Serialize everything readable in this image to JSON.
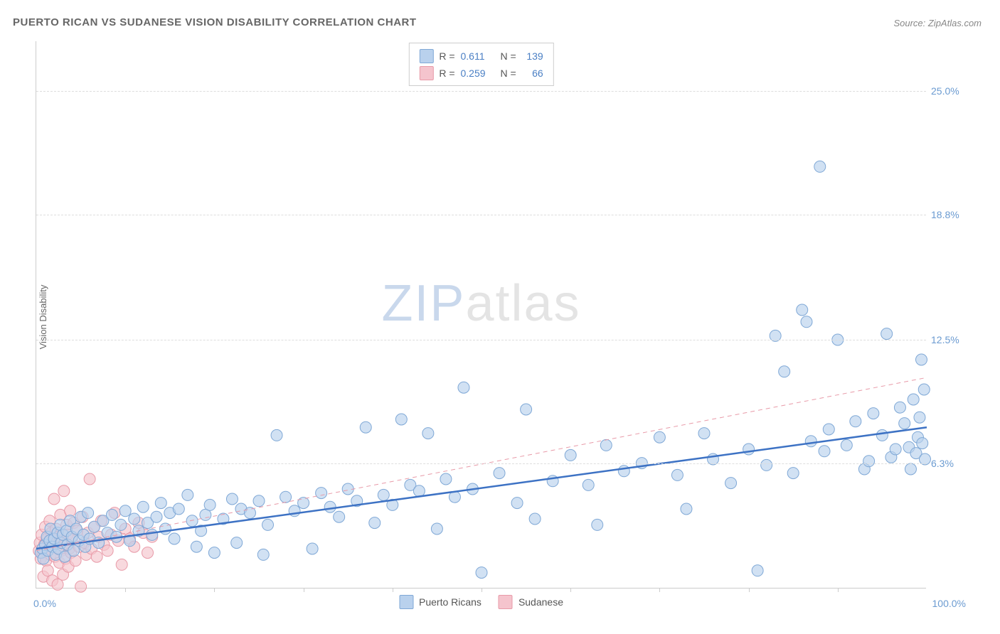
{
  "title": "PUERTO RICAN VS SUDANESE VISION DISABILITY CORRELATION CHART",
  "source": "Source: ZipAtlas.com",
  "ylabel": "Vision Disability",
  "watermark_a": "ZIP",
  "watermark_b": "atlas",
  "chart": {
    "type": "scatter",
    "xlim": [
      0,
      100
    ],
    "ylim": [
      0,
      27.5
    ],
    "x_min_label": "0.0%",
    "x_max_label": "100.0%",
    "y_ticks": [
      {
        "v": 6.3,
        "label": "6.3%"
      },
      {
        "v": 12.5,
        "label": "12.5%"
      },
      {
        "v": 18.8,
        "label": "18.8%"
      },
      {
        "v": 25.0,
        "label": "25.0%"
      }
    ],
    "x_tick_step": 10,
    "background_color": "#ffffff",
    "grid_color": "#dddddd",
    "axis_color": "#cccccc",
    "marker_radius": 8,
    "marker_stroke_width": 1,
    "series": [
      {
        "name": "Puerto Ricans",
        "fill": "#b9d1ed",
        "stroke": "#7fa8d6",
        "fill_opacity": 0.65,
        "trend": {
          "y0": 2.0,
          "y1": 8.1,
          "color": "#3d72c4",
          "width": 2.5,
          "dash": "none"
        },
        "stats": {
          "R": "0.611",
          "N": "139"
        },
        "points": [
          [
            0.5,
            1.8
          ],
          [
            0.7,
            2.0
          ],
          [
            0.8,
            1.5
          ],
          [
            1.0,
            2.2
          ],
          [
            1.2,
            2.6
          ],
          [
            1.3,
            1.9
          ],
          [
            1.5,
            2.4
          ],
          [
            1.6,
            3.0
          ],
          [
            1.8,
            2.1
          ],
          [
            2.0,
            2.5
          ],
          [
            2.2,
            1.7
          ],
          [
            2.4,
            2.8
          ],
          [
            2.5,
            2.0
          ],
          [
            2.7,
            3.2
          ],
          [
            2.8,
            2.3
          ],
          [
            3.0,
            2.7
          ],
          [
            3.2,
            1.6
          ],
          [
            3.4,
            2.9
          ],
          [
            3.5,
            2.2
          ],
          [
            3.8,
            3.4
          ],
          [
            4.0,
            2.6
          ],
          [
            4.2,
            1.9
          ],
          [
            4.5,
            3.0
          ],
          [
            4.8,
            2.4
          ],
          [
            5.0,
            3.6
          ],
          [
            5.3,
            2.7
          ],
          [
            5.5,
            2.1
          ],
          [
            5.8,
            3.8
          ],
          [
            6.0,
            2.5
          ],
          [
            6.5,
            3.1
          ],
          [
            7.0,
            2.3
          ],
          [
            7.5,
            3.4
          ],
          [
            8.0,
            2.8
          ],
          [
            8.5,
            3.7
          ],
          [
            9.0,
            2.6
          ],
          [
            9.5,
            3.2
          ],
          [
            10.0,
            3.9
          ],
          [
            10.5,
            2.4
          ],
          [
            11.0,
            3.5
          ],
          [
            11.5,
            2.9
          ],
          [
            12.0,
            4.1
          ],
          [
            12.5,
            3.3
          ],
          [
            13.0,
            2.7
          ],
          [
            13.5,
            3.6
          ],
          [
            14.0,
            4.3
          ],
          [
            14.5,
            3.0
          ],
          [
            15.0,
            3.8
          ],
          [
            15.5,
            2.5
          ],
          [
            16.0,
            4.0
          ],
          [
            17.0,
            4.7
          ],
          [
            17.5,
            3.4
          ],
          [
            18.0,
            2.1
          ],
          [
            18.5,
            2.9
          ],
          [
            19.0,
            3.7
          ],
          [
            19.5,
            4.2
          ],
          [
            20.0,
            1.8
          ],
          [
            21.0,
            3.5
          ],
          [
            22.0,
            4.5
          ],
          [
            22.5,
            2.3
          ],
          [
            23.0,
            4.0
          ],
          [
            24.0,
            3.8
          ],
          [
            25.0,
            4.4
          ],
          [
            25.5,
            1.7
          ],
          [
            26.0,
            3.2
          ],
          [
            27.0,
            7.7
          ],
          [
            28.0,
            4.6
          ],
          [
            29.0,
            3.9
          ],
          [
            30.0,
            4.3
          ],
          [
            31.0,
            2.0
          ],
          [
            32.0,
            4.8
          ],
          [
            33.0,
            4.1
          ],
          [
            34.0,
            3.6
          ],
          [
            35.0,
            5.0
          ],
          [
            36.0,
            4.4
          ],
          [
            37.0,
            8.1
          ],
          [
            38.0,
            3.3
          ],
          [
            39.0,
            4.7
          ],
          [
            40.0,
            4.2
          ],
          [
            41.0,
            8.5
          ],
          [
            42.0,
            5.2
          ],
          [
            43.0,
            4.9
          ],
          [
            44.0,
            7.8
          ],
          [
            45.0,
            3.0
          ],
          [
            46.0,
            5.5
          ],
          [
            47.0,
            4.6
          ],
          [
            48.0,
            10.1
          ],
          [
            49.0,
            5.0
          ],
          [
            50.0,
            0.8
          ],
          [
            52.0,
            5.8
          ],
          [
            54.0,
            4.3
          ],
          [
            55.0,
            9.0
          ],
          [
            56.0,
            3.5
          ],
          [
            58.0,
            5.4
          ],
          [
            60.0,
            6.7
          ],
          [
            62.0,
            5.2
          ],
          [
            63.0,
            3.2
          ],
          [
            64.0,
            7.2
          ],
          [
            66.0,
            5.9
          ],
          [
            68.0,
            6.3
          ],
          [
            70.0,
            7.6
          ],
          [
            72.0,
            5.7
          ],
          [
            73.0,
            4.0
          ],
          [
            75.0,
            7.8
          ],
          [
            76.0,
            6.5
          ],
          [
            78.0,
            5.3
          ],
          [
            80.0,
            7.0
          ],
          [
            81.0,
            0.9
          ],
          [
            82.0,
            6.2
          ],
          [
            83.0,
            12.7
          ],
          [
            84.0,
            10.9
          ],
          [
            85.0,
            5.8
          ],
          [
            86.0,
            14.0
          ],
          [
            86.5,
            13.4
          ],
          [
            87.0,
            7.4
          ],
          [
            88.0,
            21.2
          ],
          [
            88.5,
            6.9
          ],
          [
            89.0,
            8.0
          ],
          [
            90.0,
            12.5
          ],
          [
            91.0,
            7.2
          ],
          [
            92.0,
            8.4
          ],
          [
            93.0,
            6.0
          ],
          [
            93.5,
            6.4
          ],
          [
            94.0,
            8.8
          ],
          [
            95.0,
            7.7
          ],
          [
            95.5,
            12.8
          ],
          [
            96.0,
            6.6
          ],
          [
            96.5,
            7.0
          ],
          [
            97.0,
            9.1
          ],
          [
            97.5,
            8.3
          ],
          [
            98.0,
            7.1
          ],
          [
            98.2,
            6.0
          ],
          [
            98.5,
            9.5
          ],
          [
            98.8,
            6.8
          ],
          [
            99.0,
            7.6
          ],
          [
            99.2,
            8.6
          ],
          [
            99.4,
            11.5
          ],
          [
            99.5,
            7.3
          ],
          [
            99.7,
            10.0
          ],
          [
            99.8,
            6.5
          ]
        ]
      },
      {
        "name": "Sudanese",
        "fill": "#f5c4cd",
        "stroke": "#e89aa8",
        "fill_opacity": 0.65,
        "trend": {
          "y0": 1.9,
          "y1": 10.6,
          "color": "#e89aa8",
          "width": 1,
          "dash": "6,5"
        },
        "stats": {
          "R": "0.259",
          "N": "66"
        },
        "points": [
          [
            0.3,
            1.9
          ],
          [
            0.4,
            2.3
          ],
          [
            0.5,
            1.5
          ],
          [
            0.6,
            2.7
          ],
          [
            0.7,
            1.8
          ],
          [
            0.8,
            0.6
          ],
          [
            0.9,
            2.2
          ],
          [
            1.0,
            3.1
          ],
          [
            1.1,
            1.4
          ],
          [
            1.2,
            2.5
          ],
          [
            1.3,
            0.9
          ],
          [
            1.4,
            2.0
          ],
          [
            1.5,
            3.4
          ],
          [
            1.6,
            1.7
          ],
          [
            1.7,
            2.8
          ],
          [
            1.8,
            0.4
          ],
          [
            1.9,
            2.3
          ],
          [
            2.0,
            4.5
          ],
          [
            2.1,
            1.6
          ],
          [
            2.2,
            3.0
          ],
          [
            2.3,
            2.1
          ],
          [
            2.4,
            0.2
          ],
          [
            2.5,
            2.6
          ],
          [
            2.6,
            1.3
          ],
          [
            2.7,
            3.7
          ],
          [
            2.8,
            1.9
          ],
          [
            2.9,
            2.4
          ],
          [
            3.0,
            0.7
          ],
          [
            3.1,
            4.9
          ],
          [
            3.2,
            2.2
          ],
          [
            3.3,
            1.5
          ],
          [
            3.4,
            3.2
          ],
          [
            3.5,
            2.7
          ],
          [
            3.6,
            1.1
          ],
          [
            3.7,
            2.0
          ],
          [
            3.8,
            3.9
          ],
          [
            3.9,
            1.8
          ],
          [
            4.0,
            2.5
          ],
          [
            4.2,
            3.3
          ],
          [
            4.4,
            1.4
          ],
          [
            4.6,
            2.9
          ],
          [
            4.8,
            2.1
          ],
          [
            5.0,
            0.1
          ],
          [
            5.2,
            3.6
          ],
          [
            5.4,
            2.3
          ],
          [
            5.6,
            1.7
          ],
          [
            5.8,
            2.8
          ],
          [
            6.0,
            5.5
          ],
          [
            6.2,
            2.0
          ],
          [
            6.5,
            3.1
          ],
          [
            6.8,
            1.6
          ],
          [
            7.0,
            2.6
          ],
          [
            7.3,
            3.4
          ],
          [
            7.6,
            2.2
          ],
          [
            8.0,
            1.9
          ],
          [
            8.4,
            2.7
          ],
          [
            8.8,
            3.8
          ],
          [
            9.2,
            2.4
          ],
          [
            9.6,
            1.2
          ],
          [
            10.0,
            3.0
          ],
          [
            10.5,
            2.5
          ],
          [
            11.0,
            2.1
          ],
          [
            11.5,
            3.3
          ],
          [
            12.0,
            2.8
          ],
          [
            12.5,
            1.8
          ],
          [
            13.0,
            2.6
          ]
        ]
      }
    ]
  },
  "legend_top": {
    "r_label": "R =",
    "n_label": "N ="
  }
}
